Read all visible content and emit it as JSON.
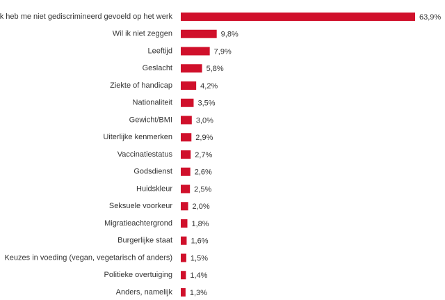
{
  "chart_data": {
    "type": "hbar",
    "color": "#d0102b",
    "categories": [
      "Ik heb me niet gediscrimineerd gevoeld op het werk",
      "Wil ik niet zeggen",
      "Leeftijd",
      "Geslacht",
      "Ziekte of handicap",
      "Nationaliteit",
      "Gewicht/BMI",
      "Uiterlijke kenmerken",
      "Vaccinatiestatus",
      "Godsdienst",
      "Huidskleur",
      "Seksuele voorkeur",
      "Migratieachtergrond",
      "Burgerlijke staat",
      "Keuzes in voeding (vegan, vegetarisch of anders)",
      "Politieke overtuiging",
      "Anders, namelijk"
    ],
    "values": [
      63.9,
      9.8,
      7.9,
      5.8,
      4.2,
      3.5,
      3.0,
      2.9,
      2.7,
      2.6,
      2.5,
      2.0,
      1.8,
      1.6,
      1.5,
      1.4,
      1.3
    ],
    "value_labels": [
      "63,9%",
      "9,8%",
      "7,9%",
      "5,8%",
      "4,2%",
      "3,5%",
      "3,0%",
      "2,9%",
      "2,7%",
      "2,6%",
      "2,5%",
      "2,0%",
      "1,8%",
      "1,6%",
      "1,5%",
      "1,4%",
      "1,3%"
    ]
  }
}
